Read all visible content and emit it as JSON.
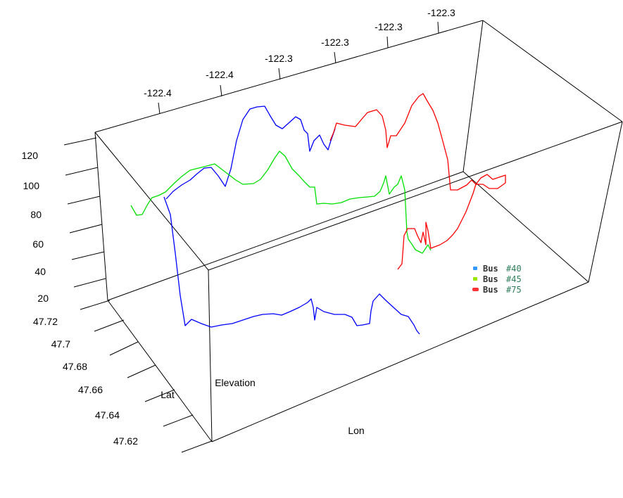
{
  "chart_data": {
    "type": "line",
    "projection": "3d",
    "axes": {
      "lon": {
        "title": "Lon",
        "ticks": [
          "-122.4",
          "-122.4",
          "-122.3",
          "-122.3",
          "-122.3",
          "-122.3"
        ],
        "range": [
          -122.42,
          -122.27
        ]
      },
      "lat": {
        "title": "Lat",
        "ticks": [
          "47.72",
          "47.7",
          "47.68",
          "47.66",
          "47.64",
          "47.62"
        ],
        "range": [
          47.61,
          47.73
        ]
      },
      "elevation": {
        "title": "Elevation",
        "ticks": [
          "120",
          "100",
          "80",
          "60",
          "40",
          "20"
        ],
        "range": [
          15,
          130
        ]
      }
    },
    "legend": {
      "placement": "right",
      "entries": [
        {
          "label": "Bus",
          "number": "#40",
          "color": "#3399ff"
        },
        {
          "label": "Bus",
          "number": "#45",
          "color": "#99e600"
        },
        {
          "label": "Bus",
          "number": "#75",
          "color": "#ff3333"
        }
      ]
    },
    "series": [
      {
        "color": "#0000ff"
      },
      {
        "color": "#00e000"
      },
      {
        "color": "#ff0000"
      }
    ]
  }
}
